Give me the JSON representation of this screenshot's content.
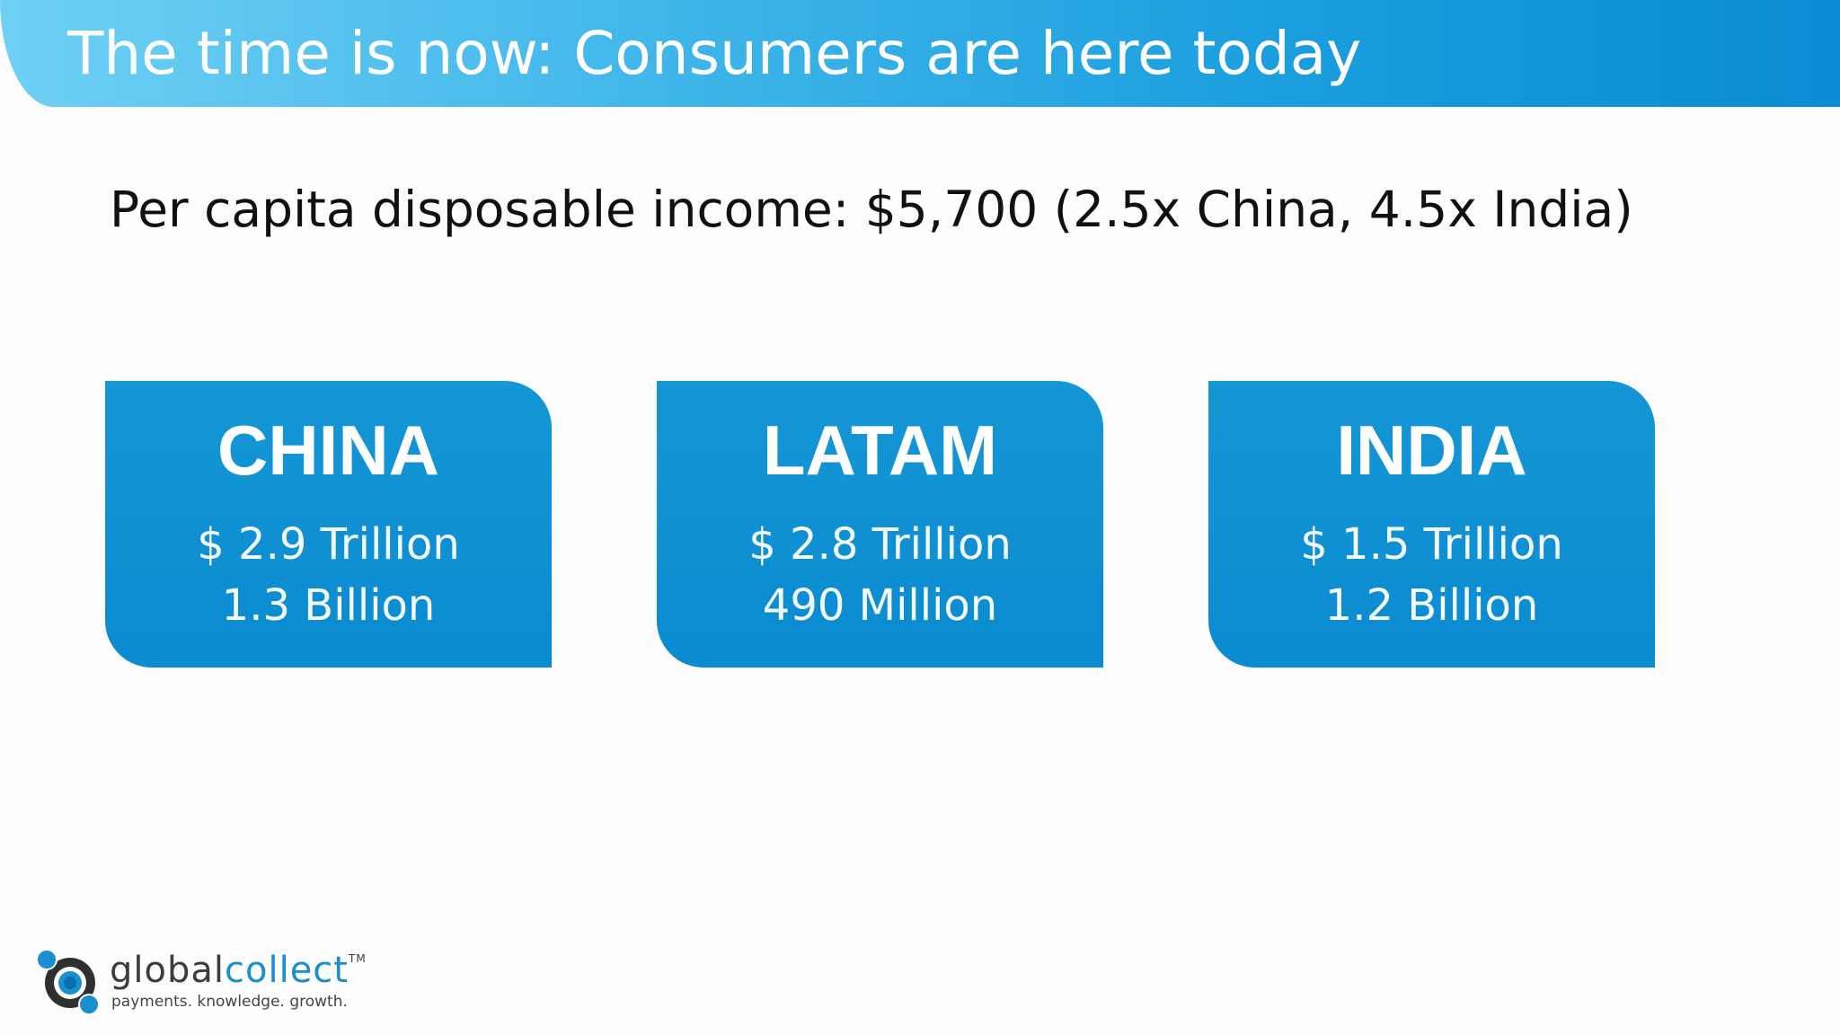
{
  "header": {
    "title": "The time is now: Consumers are here today"
  },
  "subtitle": "Per capita disposable income: $5,700 (2.5x China, 4.5x India)",
  "regions": [
    {
      "name": "CHINA",
      "value": "$ 2.9 Trillion",
      "population": "1.3 Billion"
    },
    {
      "name": "LATAM",
      "value": "$ 2.8 Trillion",
      "population": "490 Million"
    },
    {
      "name": "INDIA",
      "value": "$ 1.5 Trillion",
      "population": "1.2 Billion"
    }
  ],
  "logo": {
    "name_part1": "global",
    "name_part2": "collect",
    "trademark": "TM",
    "tagline": "payments. knowledge. growth.",
    "icon": "globalcollect-logo-icon"
  },
  "colors": {
    "title_bar_start": "#6fd0f4",
    "title_bar_end": "#0a8bd3",
    "box_blue": "#1597d6",
    "text_dark": "#111111",
    "logo_accent": "#1a8fd0"
  }
}
